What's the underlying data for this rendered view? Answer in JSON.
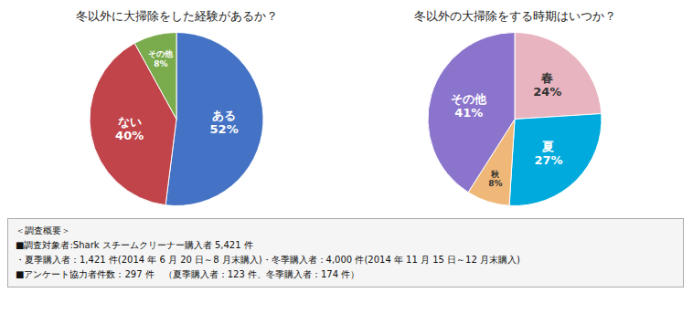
{
  "chart_data": [
    {
      "type": "pie",
      "title": "冬以外に大掃除をした経験があるか？",
      "categories": [
        "ある",
        "ない",
        "その他"
      ],
      "values": [
        52,
        40,
        8
      ],
      "value_labels": [
        "52%",
        "40%",
        "8%"
      ],
      "colors": [
        "#4472C4",
        "#C0444A",
        "#7AAB4C"
      ],
      "data_labels": true
    },
    {
      "type": "pie",
      "title": "冬以外の大掃除をする時期はいつか？",
      "categories": [
        "春",
        "夏",
        "秋",
        "その他"
      ],
      "values": [
        24,
        27,
        8,
        41
      ],
      "value_labels": [
        "24%",
        "27%",
        "8%",
        "41%"
      ],
      "colors": [
        "#E8B4C0",
        "#00AADD",
        "#F0B878",
        "#8B74CC"
      ],
      "data_labels": true
    }
  ],
  "annotations": [
    "＜調査概要＞",
    "■調査対象者:Shark スチームクリーナー購入者 5,421 件",
    "・夏季購入者：1,421 件(2014 年 6 月 20 日～8 月末購入)・冬季購入者：4,000 件(2014 年 11 月 15 日～12 月末購入)",
    "■アンケート協力者件数：297 件　（夏季購入者：123 件、冬季購入者：174 件）"
  ]
}
